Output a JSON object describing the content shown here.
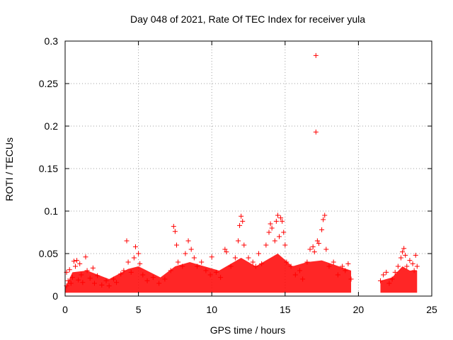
{
  "chart_data": {
    "type": "scatter",
    "title": "Day 048 of 2021, Rate Of TEC Index for receiver yula",
    "xlabel": "GPS time / hours",
    "ylabel": "ROTI / TECUs",
    "xlim": [
      0,
      25
    ],
    "ylim": [
      0,
      0.3
    ],
    "xticks": [
      "0",
      "5",
      "10",
      "15",
      "20",
      "25"
    ],
    "yticks": [
      "0",
      "0.05",
      "0.1",
      "0.15",
      "0.2",
      "0.25",
      "0.3"
    ],
    "grid": true,
    "legend": "none",
    "marker": "+",
    "color": "#ff0000",
    "series": [
      {
        "values": [
          [
            0.1,
            0.012
          ],
          [
            0.1,
            0.028
          ],
          [
            0.2,
            0.018
          ],
          [
            0.3,
            0.031
          ],
          [
            0.4,
            0.015
          ],
          [
            0.5,
            0.022
          ],
          [
            0.6,
            0.041
          ],
          [
            0.7,
            0.035
          ],
          [
            0.8,
            0.042
          ],
          [
            0.9,
            0.019
          ],
          [
            1.0,
            0.038
          ],
          [
            1.1,
            0.025
          ],
          [
            1.2,
            0.016
          ],
          [
            1.4,
            0.046
          ],
          [
            1.5,
            0.03
          ],
          [
            1.7,
            0.021
          ],
          [
            1.9,
            0.033
          ],
          [
            2.0,
            0.015
          ],
          [
            2.2,
            0.024
          ],
          [
            2.5,
            0.013
          ],
          [
            2.8,
            0.018
          ],
          [
            3.0,
            0.012
          ],
          [
            3.3,
            0.02
          ],
          [
            3.5,
            0.016
          ],
          [
            3.8,
            0.026
          ],
          [
            4.0,
            0.03
          ],
          [
            4.2,
            0.065
          ],
          [
            4.3,
            0.04
          ],
          [
            4.5,
            0.028
          ],
          [
            4.7,
            0.045
          ],
          [
            4.8,
            0.058
          ],
          [
            5.0,
            0.05
          ],
          [
            5.1,
            0.038
          ],
          [
            5.3,
            0.025
          ],
          [
            5.6,
            0.018
          ],
          [
            6.0,
            0.022
          ],
          [
            6.4,
            0.015
          ],
          [
            6.8,
            0.02
          ],
          [
            7.2,
            0.03
          ],
          [
            7.4,
            0.082
          ],
          [
            7.5,
            0.076
          ],
          [
            7.6,
            0.06
          ],
          [
            7.7,
            0.04
          ],
          [
            8.0,
            0.035
          ],
          [
            8.2,
            0.05
          ],
          [
            8.4,
            0.065
          ],
          [
            8.6,
            0.055
          ],
          [
            8.8,
            0.045
          ],
          [
            9.0,
            0.035
          ],
          [
            9.3,
            0.04
          ],
          [
            9.6,
            0.03
          ],
          [
            9.9,
            0.025
          ],
          [
            10.0,
            0.046
          ],
          [
            10.3,
            0.028
          ],
          [
            10.6,
            0.022
          ],
          [
            10.9,
            0.055
          ],
          [
            11.0,
            0.052
          ],
          [
            11.3,
            0.035
          ],
          [
            11.6,
            0.045
          ],
          [
            11.8,
            0.065
          ],
          [
            11.9,
            0.083
          ],
          [
            12.0,
            0.094
          ],
          [
            12.1,
            0.088
          ],
          [
            12.2,
            0.06
          ],
          [
            12.5,
            0.045
          ],
          [
            12.8,
            0.04
          ],
          [
            13.0,
            0.035
          ],
          [
            13.2,
            0.05
          ],
          [
            13.4,
            0.038
          ],
          [
            13.7,
            0.06
          ],
          [
            13.9,
            0.075
          ],
          [
            14.0,
            0.085
          ],
          [
            14.1,
            0.08
          ],
          [
            14.3,
            0.065
          ],
          [
            14.4,
            0.088
          ],
          [
            14.5,
            0.095
          ],
          [
            14.6,
            0.07
          ],
          [
            14.7,
            0.092
          ],
          [
            14.8,
            0.088
          ],
          [
            14.9,
            0.075
          ],
          [
            15.0,
            0.06
          ],
          [
            15.1,
            0.04
          ],
          [
            15.4,
            0.035
          ],
          [
            15.7,
            0.025
          ],
          [
            16.0,
            0.03
          ],
          [
            16.2,
            0.02
          ],
          [
            16.5,
            0.04
          ],
          [
            16.7,
            0.055
          ],
          [
            16.9,
            0.058
          ],
          [
            17.0,
            0.052
          ],
          [
            17.1,
            0.283
          ],
          [
            17.1,
            0.193
          ],
          [
            17.2,
            0.065
          ],
          [
            17.3,
            0.062
          ],
          [
            17.5,
            0.078
          ],
          [
            17.6,
            0.09
          ],
          [
            17.7,
            0.095
          ],
          [
            17.8,
            0.055
          ],
          [
            18.0,
            0.035
          ],
          [
            18.3,
            0.04
          ],
          [
            18.6,
            0.025
          ],
          [
            18.9,
            0.035
          ],
          [
            19.1,
            0.03
          ],
          [
            19.3,
            0.038
          ],
          [
            19.5,
            0.02
          ],
          [
            21.5,
            0.018
          ],
          [
            21.7,
            0.025
          ],
          [
            21.9,
            0.028
          ],
          [
            22.1,
            0.015
          ],
          [
            22.3,
            0.02
          ],
          [
            22.5,
            0.028
          ],
          [
            22.7,
            0.035
          ],
          [
            22.9,
            0.045
          ],
          [
            23.0,
            0.052
          ],
          [
            23.1,
            0.056
          ],
          [
            23.2,
            0.048
          ],
          [
            23.3,
            0.035
          ],
          [
            23.5,
            0.042
          ],
          [
            23.7,
            0.038
          ],
          [
            23.8,
            0.03
          ],
          [
            23.9,
            0.048
          ],
          [
            24.0,
            0.035
          ]
        ]
      }
    ]
  }
}
